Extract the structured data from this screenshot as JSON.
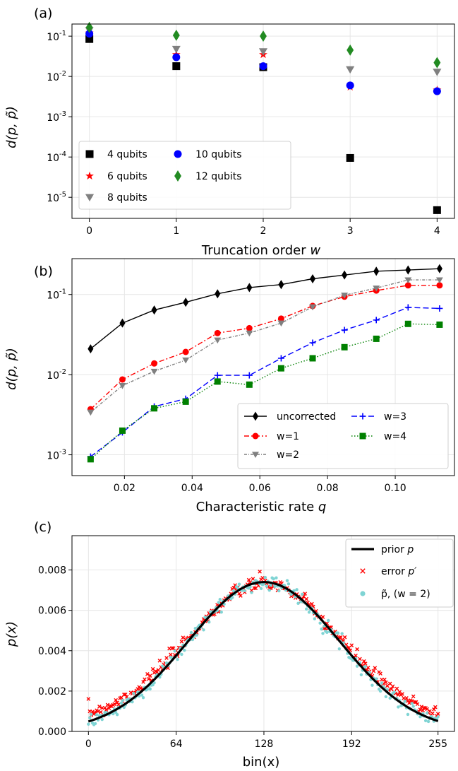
{
  "chart_data": [
    {
      "panel_label": "(a)",
      "type": "scatter",
      "xlabel": "Truncation order ",
      "xlabel_var": "w",
      "ylabel": "d(p, p̃)",
      "yscale": "log",
      "ylim": [
        3e-06,
        0.2
      ],
      "xlim": [
        -0.2,
        4.2
      ],
      "xticks": [
        "0",
        "1",
        "2",
        "3",
        "4"
      ],
      "yticks": [
        "10",
        "10",
        "10",
        "10",
        "10"
      ],
      "ytick_exponents": [
        "-1",
        "-2",
        "-3",
        "-4",
        "-5"
      ],
      "ytick_values": [
        0.1,
        0.01,
        0.001,
        0.0001,
        1e-05
      ],
      "grid": true,
      "legend_position": "lower-left",
      "series": [
        {
          "name": "4 qubits",
          "marker": "square",
          "color": "#000000",
          "x": [
            0,
            1,
            2,
            3,
            4
          ],
          "y": [
            0.085,
            0.018,
            0.017,
            9.5e-05,
            4.8e-06
          ]
        },
        {
          "name": "6 qubits",
          "marker": "star",
          "color": "#ff0000",
          "x": [
            0,
            1,
            2,
            3,
            4
          ],
          "y": [
            0.12,
            0.035,
            0.035,
            0.0055,
            0.0046
          ]
        },
        {
          "name": "8 qubits",
          "marker": "triangle-down",
          "color": "#808080",
          "x": [
            0,
            1,
            2,
            3,
            4
          ],
          "y": [
            0.14,
            0.048,
            0.042,
            0.015,
            0.013
          ]
        },
        {
          "name": "10 qubits",
          "marker": "circle",
          "color": "#0000ff",
          "x": [
            0,
            1,
            2,
            3,
            4
          ],
          "y": [
            0.115,
            0.03,
            0.018,
            0.006,
            0.0043
          ]
        },
        {
          "name": "12 qubits",
          "marker": "diamond",
          "color": "#228b22",
          "x": [
            0,
            1,
            2,
            3,
            4
          ],
          "y": [
            0.165,
            0.105,
            0.1,
            0.045,
            0.022
          ]
        }
      ]
    },
    {
      "panel_label": "(b)",
      "type": "line",
      "xlabel": "Characteristic rate ",
      "xlabel_var": "q",
      "ylabel": "d(p, p̃)",
      "yscale": "log",
      "ylim": [
        0.00055,
        0.28
      ],
      "xlim": [
        0.0045,
        0.1175
      ],
      "xticks": [
        "0.02",
        "0.04",
        "0.06",
        "0.08",
        "0.10"
      ],
      "xtick_values": [
        0.02,
        0.04,
        0.06,
        0.08,
        0.1
      ],
      "yticks": [
        "10",
        "10",
        "10"
      ],
      "ytick_exponents": [
        "-1",
        "-2",
        "-3"
      ],
      "ytick_values": [
        0.1,
        0.01,
        0.001
      ],
      "grid": true,
      "legend_position": "lower-right",
      "x": [
        0.01,
        0.0194,
        0.0288,
        0.0381,
        0.0475,
        0.0569,
        0.0663,
        0.0756,
        0.085,
        0.0944,
        0.1038,
        0.1131
      ],
      "series": [
        {
          "name": "uncorrected",
          "marker": "diamond",
          "color": "#000000",
          "dash": "",
          "y": [
            0.021,
            0.044,
            0.064,
            0.08,
            0.102,
            0.122,
            0.133,
            0.157,
            0.175,
            0.195,
            0.202,
            0.21
          ]
        },
        {
          "name": "w=1",
          "marker": "circle",
          "color": "#ff0000",
          "dash": "7,3,2,3",
          "y": [
            0.0037,
            0.0087,
            0.0138,
            0.0192,
            0.033,
            0.038,
            0.05,
            0.072,
            0.094,
            0.112,
            0.13,
            0.13
          ]
        },
        {
          "name": "w=2",
          "marker": "triangle-down",
          "color": "#808080",
          "dash": "4,2,1,2",
          "y": [
            0.0034,
            0.0073,
            0.011,
            0.0152,
            0.027,
            0.033,
            0.044,
            0.07,
            0.098,
            0.12,
            0.152,
            0.152
          ]
        },
        {
          "name": "w=3",
          "marker": "plus",
          "color": "#0000ff",
          "dash": "8,4",
          "y": [
            0.00095,
            0.0019,
            0.004,
            0.005,
            0.0098,
            0.0098,
            0.016,
            0.025,
            0.036,
            0.048,
            0.069,
            0.067
          ]
        },
        {
          "name": "w=4",
          "marker": "square",
          "color": "#008000",
          "dash": "1.5,2.5",
          "y": [
            0.00088,
            0.002,
            0.0038,
            0.0046,
            0.0082,
            0.0075,
            0.012,
            0.016,
            0.022,
            0.028,
            0.043,
            0.042
          ]
        }
      ]
    },
    {
      "panel_label": "(c)",
      "type": "scatter",
      "xlabel": "bin(x)",
      "ylabel": "p(x)",
      "xlim": [
        -12,
        267
      ],
      "ylim": [
        0,
        0.0097
      ],
      "xticks": [
        "0",
        "64",
        "128",
        "192",
        "255"
      ],
      "xtick_values": [
        0,
        64,
        128,
        192,
        255
      ],
      "yticks": [
        "0.000",
        "0.002",
        "0.004",
        "0.006",
        "0.008"
      ],
      "ytick_values": [
        0,
        0.002,
        0.004,
        0.006,
        0.008
      ],
      "grid": true,
      "legend_position": "upper-right",
      "distribution": {
        "mean": 128,
        "std": 55,
        "bins": 256
      },
      "series": [
        {
          "name": "prior ",
          "name_var": "p",
          "style": "line",
          "color": "#000000"
        },
        {
          "name": "error ",
          "name_var": "p′",
          "style": "x",
          "color": "#ff0000"
        },
        {
          "name": "p̃, (w = 2)",
          "style": "dot",
          "color": "#7fd4d4"
        }
      ]
    }
  ]
}
